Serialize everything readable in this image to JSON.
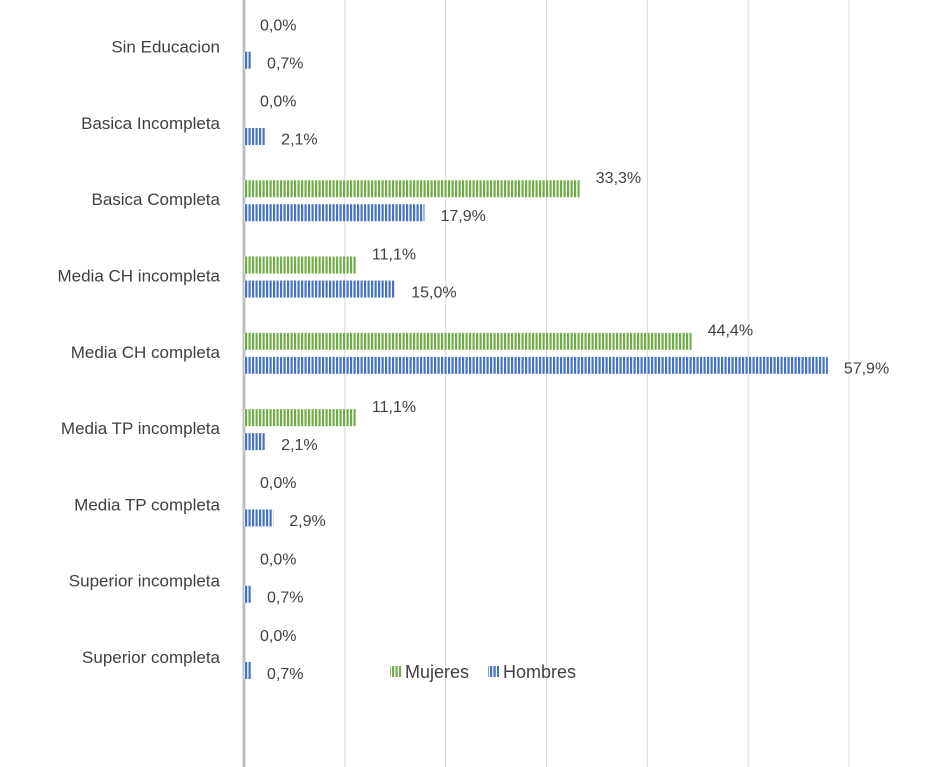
{
  "chart_data": {
    "type": "bar",
    "orientation": "horizontal",
    "categories": [
      "Sin Educacion",
      "Basica Incompleta",
      "Basica Completa",
      "Media CH incompleta",
      "Media CH completa",
      "Media TP incompleta",
      "Media TP completa",
      "Superior incompleta",
      "Superior completa"
    ],
    "series": [
      {
        "name": "Mujeres",
        "color": "#70ad47",
        "values": [
          0.0,
          0.0,
          33.3,
          11.1,
          44.4,
          11.1,
          0.0,
          0.0,
          0.0
        ],
        "value_labels": [
          "0,0%",
          "0,0%",
          "33,3%",
          "11,1%",
          "44,4%",
          "11,1%",
          "0,0%",
          "0,0%",
          "0,0%"
        ]
      },
      {
        "name": "Hombres",
        "color": "#4472c4",
        "values": [
          0.7,
          2.1,
          17.9,
          15.0,
          57.9,
          2.1,
          2.9,
          0.7,
          0.7
        ],
        "value_labels": [
          "0,7%",
          "2,1%",
          "17,9%",
          "15,0%",
          "57,9%",
          "2,1%",
          "2,9%",
          "0,7%",
          "0,7%"
        ]
      }
    ],
    "xlim": [
      0,
      60
    ],
    "xticks": [
      0,
      10,
      20,
      30,
      40,
      50,
      60
    ],
    "grid": true,
    "pattern": "vertical-stripes"
  }
}
